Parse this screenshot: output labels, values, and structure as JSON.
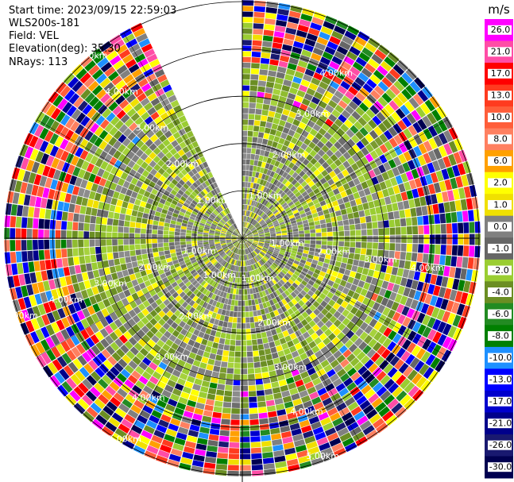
{
  "info": {
    "start_time": "Start time: 2023/09/15 22:59:03",
    "instrument": "WLS200s-181",
    "field": "Field: VEL",
    "elevation": "Elevation(deg): 35.30",
    "nrays": "NRays: 113"
  },
  "chart_data": {
    "type": "heatmap",
    "projection": "polar-ppi",
    "field": "VEL",
    "units": "m/s",
    "ring_labels": [
      "1.00km",
      "2.00km",
      "3.00km",
      "4.00km",
      "5.00km"
    ],
    "ring_ranges_km": [
      1,
      2,
      3,
      4,
      5
    ],
    "max_range_km": 5.0,
    "elevation_deg": 35.3,
    "nrays": 113,
    "sector_gap_deg": [
      335,
      360
    ],
    "colorbar": {
      "unit_label": "m/s",
      "ticks": [
        "26.0",
        "21.0",
        "17.0",
        "13.0",
        "10.0",
        "8.0",
        "6.0",
        "2.0",
        "1.0",
        "0.0",
        "-1.0",
        "-2.0",
        "-4.0",
        "-6.0",
        "-8.0",
        "-10.0",
        "-13.0",
        "-17.0",
        "-21.0",
        "-26.0",
        "-30.0"
      ],
      "colors": [
        "#ff00ff",
        "#ff4da6",
        "#ff0000",
        "#ff3b1f",
        "#ff5e3a",
        "#ff8060",
        "#ffa000",
        "#ffff00",
        "#f0e000",
        "#808080",
        "#666666",
        "#9acd32",
        "#6b8e23",
        "#228b22",
        "#008000",
        "#1e90ff",
        "#0000ff",
        "#0000cd",
        "#00008b",
        "#191970",
        "#000050"
      ]
    },
    "range_bands": [
      {
        "range_km": [
          0.0,
          1.0
        ],
        "mix": {
          "gray": 0.55,
          "yellowgreen": 0.25,
          "olive": 0.1,
          "yellow": 0.1
        }
      },
      {
        "range_km": [
          1.0,
          2.0
        ],
        "mix": {
          "gray": 0.5,
          "yellowgreen": 0.3,
          "olive": 0.1,
          "yellow": 0.1
        }
      },
      {
        "range_km": [
          2.0,
          3.0
        ],
        "mix": {
          "gray": 0.35,
          "yellowgreen": 0.35,
          "olive": 0.2,
          "yellow": 0.1
        }
      },
      {
        "range_km": [
          3.0,
          3.6
        ],
        "mix": {
          "gray": 0.25,
          "yellowgreen": 0.3,
          "olive": 0.15,
          "yellow": 0.1,
          "noise": 0.2
        }
      },
      {
        "range_km": [
          3.6,
          5.0
        ],
        "mix": {
          "noise": 1.0
        }
      }
    ]
  }
}
